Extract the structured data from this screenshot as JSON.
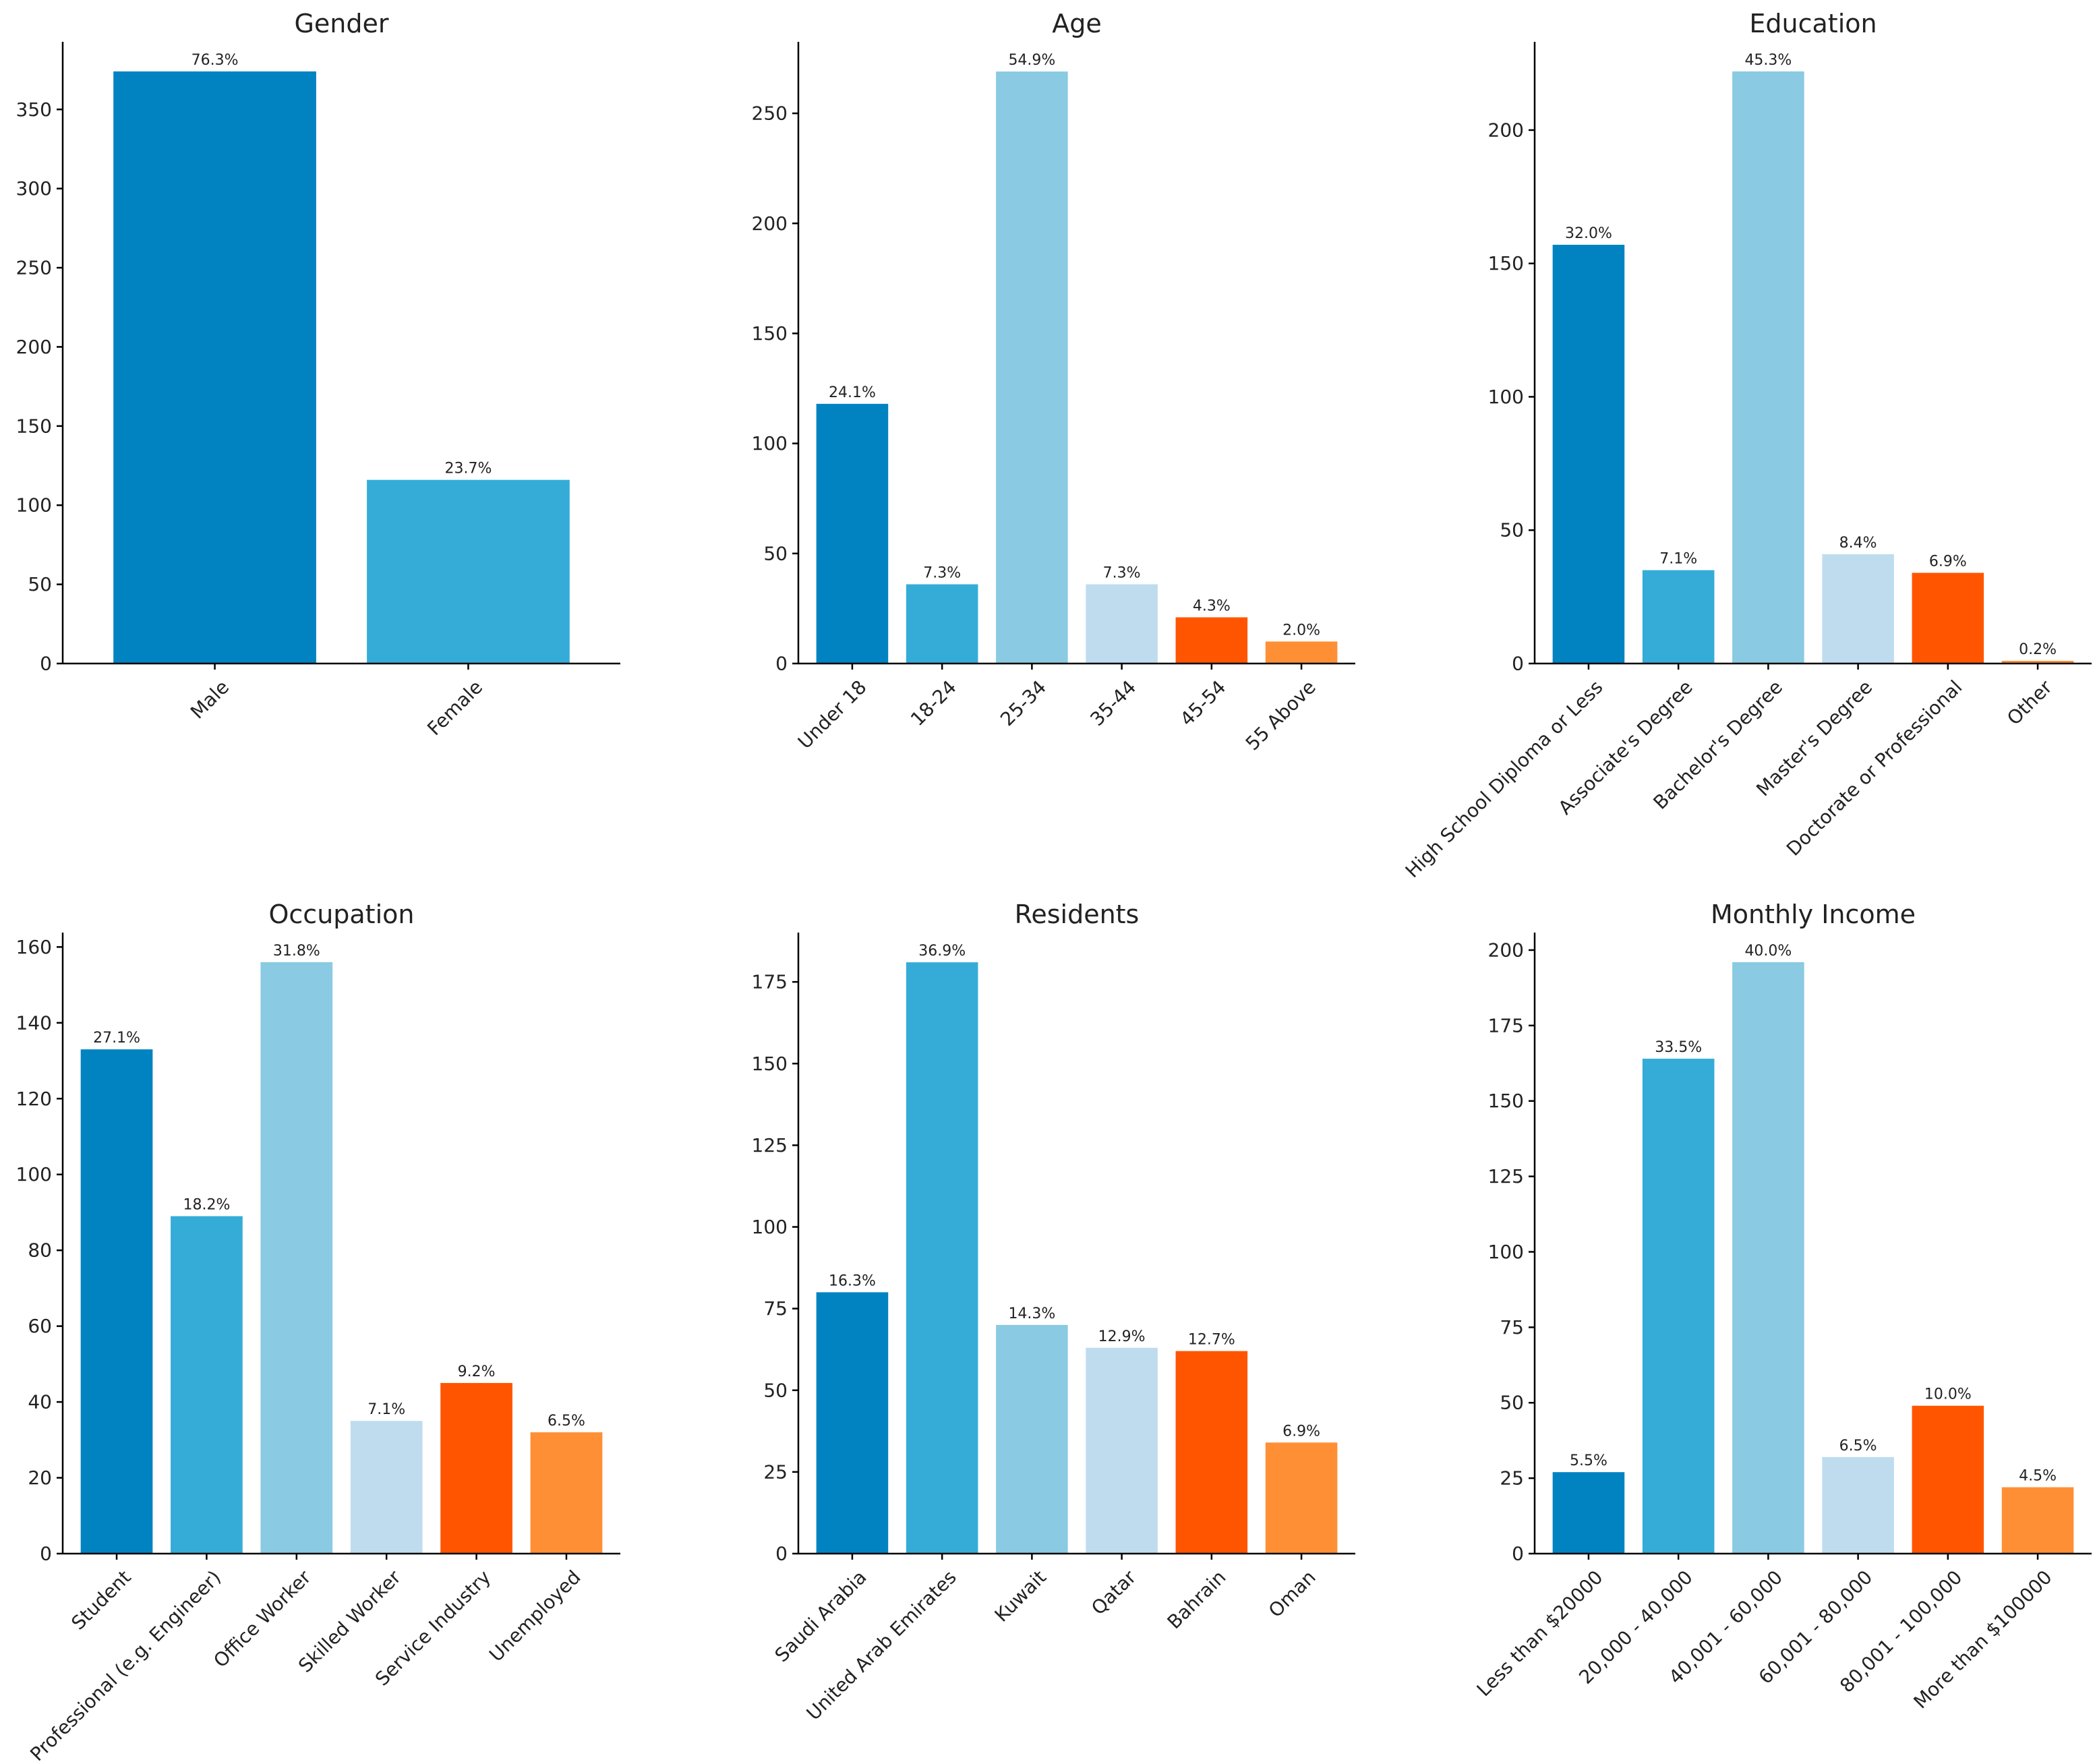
{
  "colors": [
    "#0283c1",
    "#35acd8",
    "#8acae2",
    "#bfdcef",
    "#ff5500",
    "#ff8f35"
  ],
  "chart_data": [
    {
      "type": "bar",
      "title": "Gender",
      "categories": [
        "Male",
        "Female"
      ],
      "values": [
        374,
        116
      ],
      "labels": [
        "76.3%",
        "23.7%"
      ],
      "yticks": [
        0,
        50,
        100,
        150,
        200,
        250,
        300,
        350
      ],
      "ylim": [
        0,
        392.7
      ],
      "xlabel": "",
      "ylabel": ""
    },
    {
      "type": "bar",
      "title": "Age",
      "categories": [
        "Under 18",
        "18-24",
        "25-34",
        "35-44",
        "45-54",
        "55 Above"
      ],
      "values": [
        118,
        36,
        269,
        36,
        21,
        10
      ],
      "labels": [
        "24.1%",
        "7.3%",
        "54.9%",
        "7.3%",
        "4.3%",
        "2.0%"
      ],
      "yticks": [
        0,
        50,
        100,
        150,
        200,
        250
      ],
      "ylim": [
        0,
        282.5
      ],
      "xlabel": "",
      "ylabel": ""
    },
    {
      "type": "bar",
      "title": "Education",
      "categories": [
        "High School Diploma or Less",
        "Associate's Degree",
        "Bachelor's Degree",
        "Master's Degree",
        "Doctorate or Professional",
        "Other"
      ],
      "values": [
        157,
        35,
        222,
        41,
        34,
        1
      ],
      "labels": [
        "32.0%",
        "7.1%",
        "45.3%",
        "8.4%",
        "6.9%",
        "0.2%"
      ],
      "yticks": [
        0,
        50,
        100,
        150,
        200
      ],
      "ylim": [
        0,
        233.1
      ],
      "xlabel": "",
      "ylabel": ""
    },
    {
      "type": "bar",
      "title": "Occupation",
      "categories": [
        "Student",
        "Professional (e.g. Engineer)",
        "Office Worker",
        "Skilled Worker",
        "Service Industry",
        "Unemployed"
      ],
      "values": [
        133,
        89,
        156,
        35,
        45,
        32
      ],
      "labels": [
        "27.1%",
        "18.2%",
        "31.8%",
        "7.1%",
        "9.2%",
        "6.5%"
      ],
      "yticks": [
        0,
        20,
        40,
        60,
        80,
        100,
        120,
        140,
        160
      ],
      "ylim": [
        0,
        163.8
      ],
      "xlabel": "",
      "ylabel": ""
    },
    {
      "type": "bar",
      "title": "Residents",
      "categories": [
        "Saudi Arabia",
        "United Arab Emirates",
        "Kuwait",
        "Qatar",
        "Bahrain",
        "Oman"
      ],
      "values": [
        80,
        181,
        70,
        63,
        62,
        34
      ],
      "labels": [
        "16.3%",
        "36.9%",
        "14.3%",
        "12.9%",
        "12.7%",
        "6.9%"
      ],
      "yticks": [
        0,
        25,
        50,
        75,
        100,
        125,
        150,
        175
      ],
      "ylim": [
        0,
        190.1
      ],
      "xlabel": "",
      "ylabel": ""
    },
    {
      "type": "bar",
      "title": "Monthly Income",
      "categories": [
        "Less than $20000",
        "20,000 - 40,000",
        "40,001 - 60,000",
        "60,001 - 80,000",
        "80,001 - 100,000",
        "More than $100000"
      ],
      "values": [
        27,
        164,
        196,
        32,
        49,
        22
      ],
      "labels": [
        "5.5%",
        "33.5%",
        "40.0%",
        "6.5%",
        "10.0%",
        "4.5%"
      ],
      "yticks": [
        0,
        25,
        50,
        75,
        100,
        125,
        150,
        175,
        200
      ],
      "ylim": [
        0,
        205.8
      ],
      "xlabel": "",
      "ylabel": ""
    }
  ]
}
